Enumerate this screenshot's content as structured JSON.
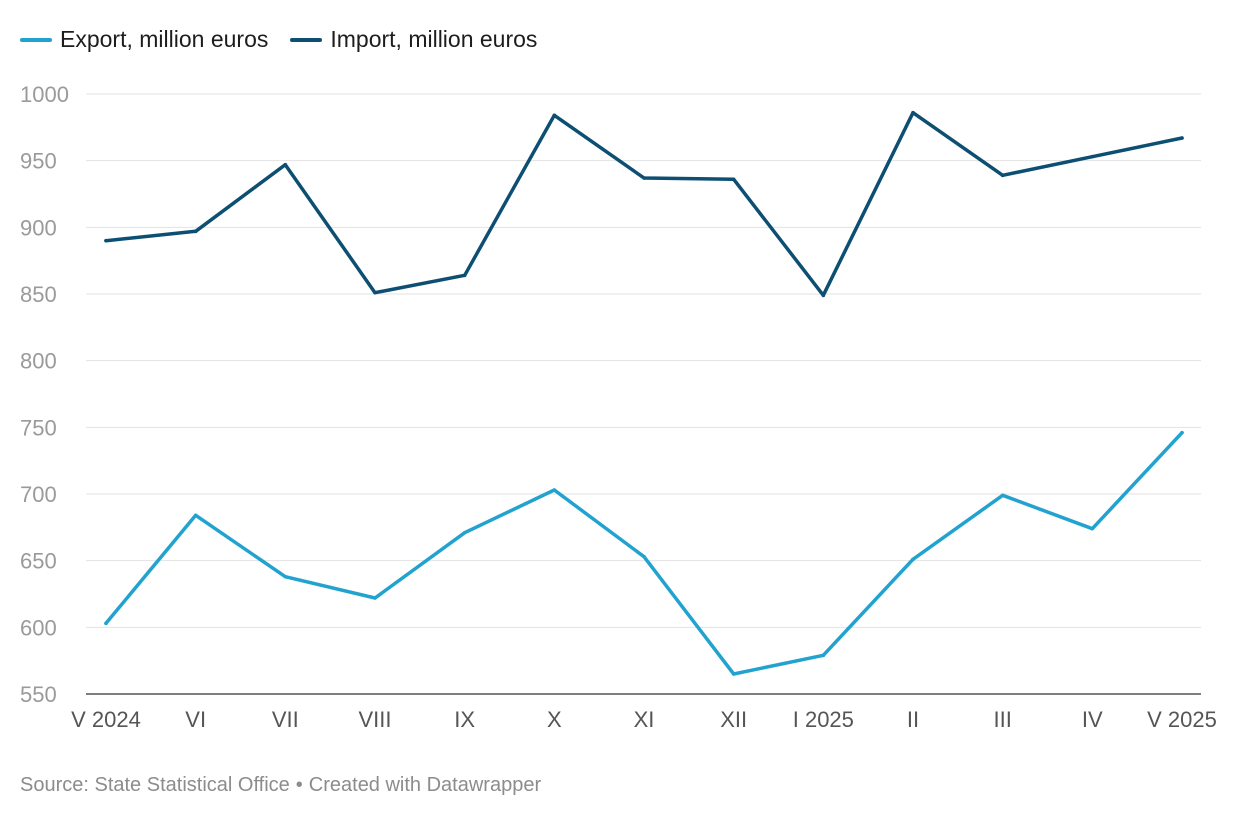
{
  "legend": [
    {
      "label": "Export, million euros",
      "color": "#22a3cf"
    },
    {
      "label": "Import, million euros",
      "color": "#0d4f73"
    }
  ],
  "footer": {
    "source": "Source: State Statistical Office",
    "separator": "•",
    "credit": "Created with Datawrapper"
  },
  "chart_data": {
    "type": "line",
    "categories": [
      "V 2024",
      "VI",
      "VII",
      "VIII",
      "IX",
      "X",
      "XI",
      "XII",
      "I 2025",
      "II",
      "III",
      "IV",
      "V 2025"
    ],
    "series": [
      {
        "name": "Export, million euros",
        "color": "#22a3cf",
        "values": [
          603,
          684,
          638,
          622,
          671,
          703,
          653,
          565,
          579,
          651,
          699,
          674,
          746
        ]
      },
      {
        "name": "Import, million euros",
        "color": "#0d4f73",
        "values": [
          890,
          897,
          947,
          851,
          864,
          984,
          937,
          936,
          849,
          986,
          939,
          953,
          967
        ]
      }
    ],
    "y_ticks": [
      550,
      600,
      650,
      700,
      750,
      800,
      850,
      900,
      950,
      1000
    ],
    "ylim": [
      550,
      1000
    ],
    "grid": true,
    "legend_position": "top-left"
  }
}
